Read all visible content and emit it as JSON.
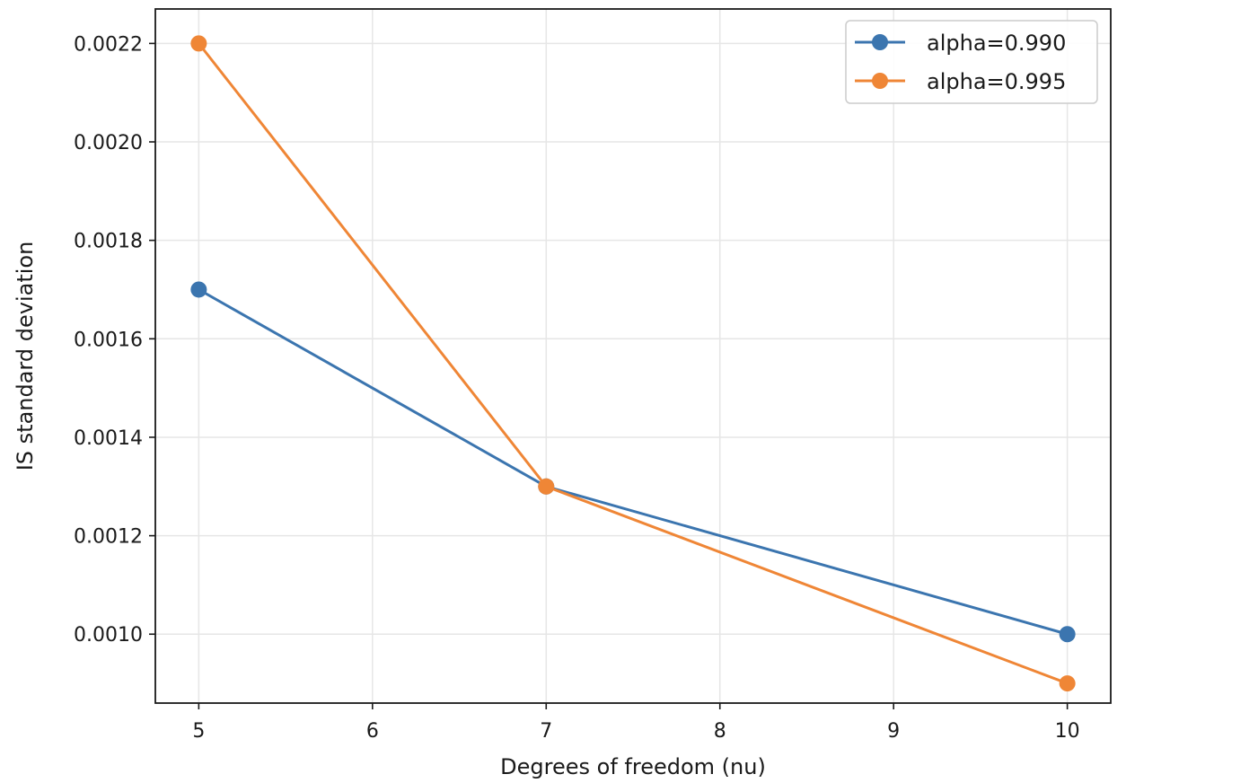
{
  "chart_data": {
    "type": "line",
    "title": "",
    "xlabel": "Degrees of freedom (nu)",
    "ylabel": "IS standard deviation",
    "x": [
      5,
      7,
      10
    ],
    "xlim": [
      4.75,
      10.25
    ],
    "ylim": [
      0.00086,
      0.00227
    ],
    "xticks": [
      5,
      6,
      7,
      8,
      9,
      10
    ],
    "xtick_labels": [
      "5",
      "6",
      "7",
      "8",
      "9",
      "10"
    ],
    "yticks": [
      0.001,
      0.0012,
      0.0014,
      0.0016,
      0.0018,
      0.002,
      0.0022
    ],
    "ytick_labels": [
      "0.0010",
      "0.0012",
      "0.0014",
      "0.0016",
      "0.0018",
      "0.0020",
      "0.0022"
    ],
    "grid": true,
    "legend_position": "top-right",
    "series": [
      {
        "name": "alpha=0.990",
        "color": "#3b75af",
        "values": [
          0.0017,
          0.0013,
          0.001
        ]
      },
      {
        "name": "alpha=0.995",
        "color": "#ef8636",
        "values": [
          0.0022,
          0.0013,
          0.0009
        ]
      }
    ]
  }
}
